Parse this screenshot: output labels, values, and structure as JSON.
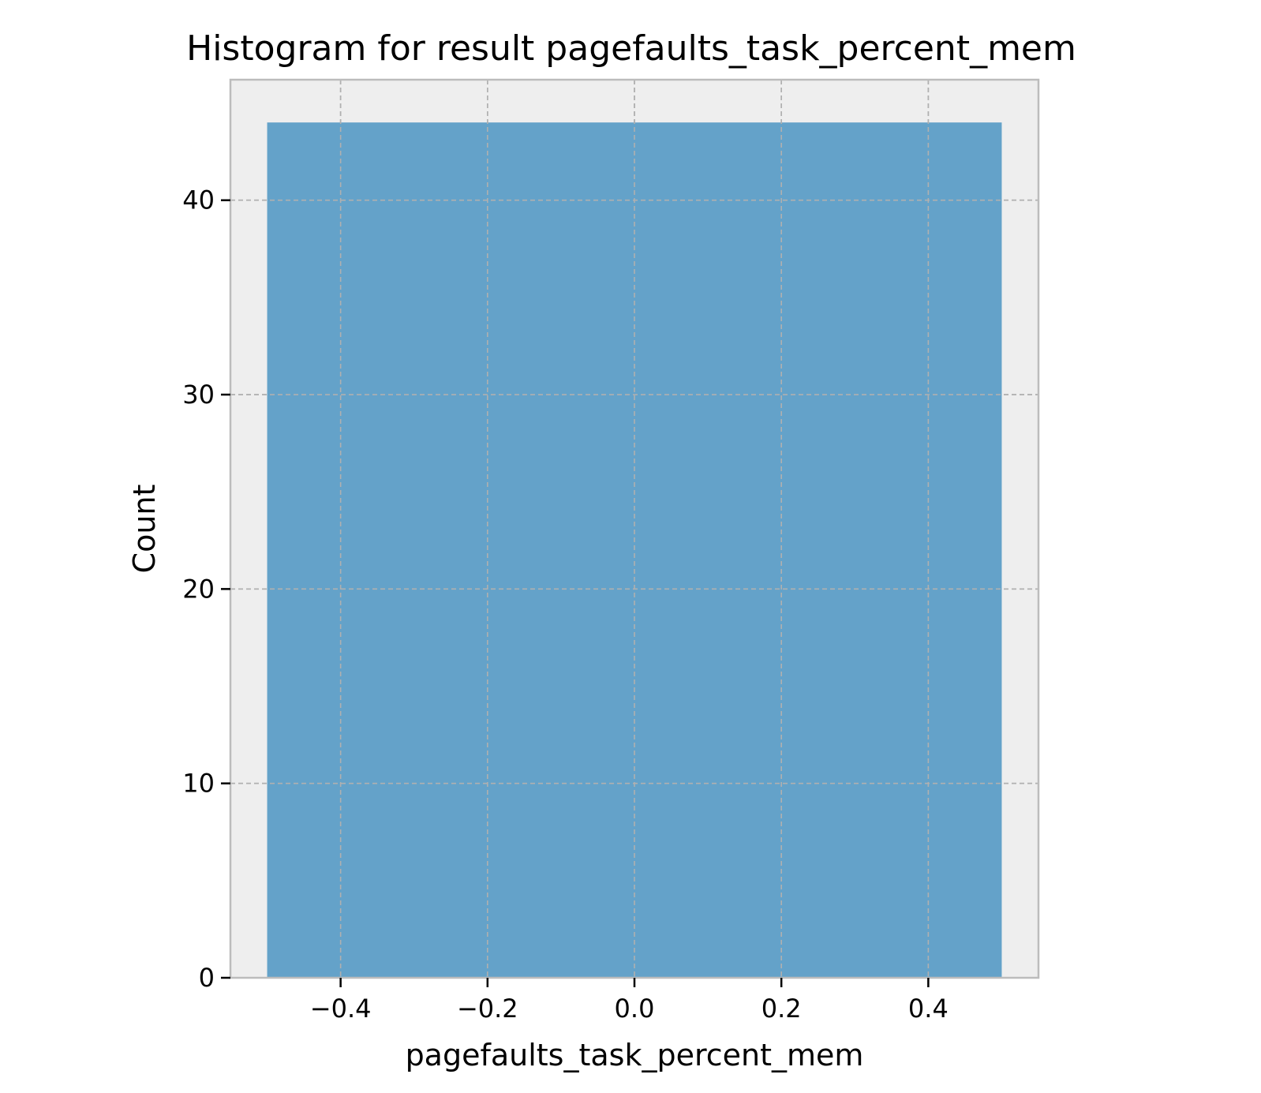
{
  "chart_data": {
    "type": "histogram",
    "title": "Histogram for result pagefaults_task_percent_mem",
    "xlabel": "pagefaults_task_percent_mem",
    "ylabel": "Count",
    "xlim": [
      -0.55,
      0.55
    ],
    "ylim": [
      0,
      46.2
    ],
    "x_ticks": [
      -0.4,
      -0.2,
      0.0,
      0.2,
      0.4
    ],
    "x_tick_labels": [
      "−0.4",
      "−0.2",
      "0.0",
      "0.2",
      "0.4"
    ],
    "y_ticks": [
      0,
      10,
      20,
      30,
      40
    ],
    "y_tick_labels": [
      "0",
      "10",
      "20",
      "30",
      "40"
    ],
    "bins": [
      {
        "x_start": -0.5,
        "x_end": 0.5,
        "count": 44
      }
    ],
    "grid": true,
    "colors": {
      "bar": "#64a2c9",
      "plot_background": "#eeeeee",
      "grid": "#b0b0b0",
      "frame": "#bcbcbc"
    }
  }
}
